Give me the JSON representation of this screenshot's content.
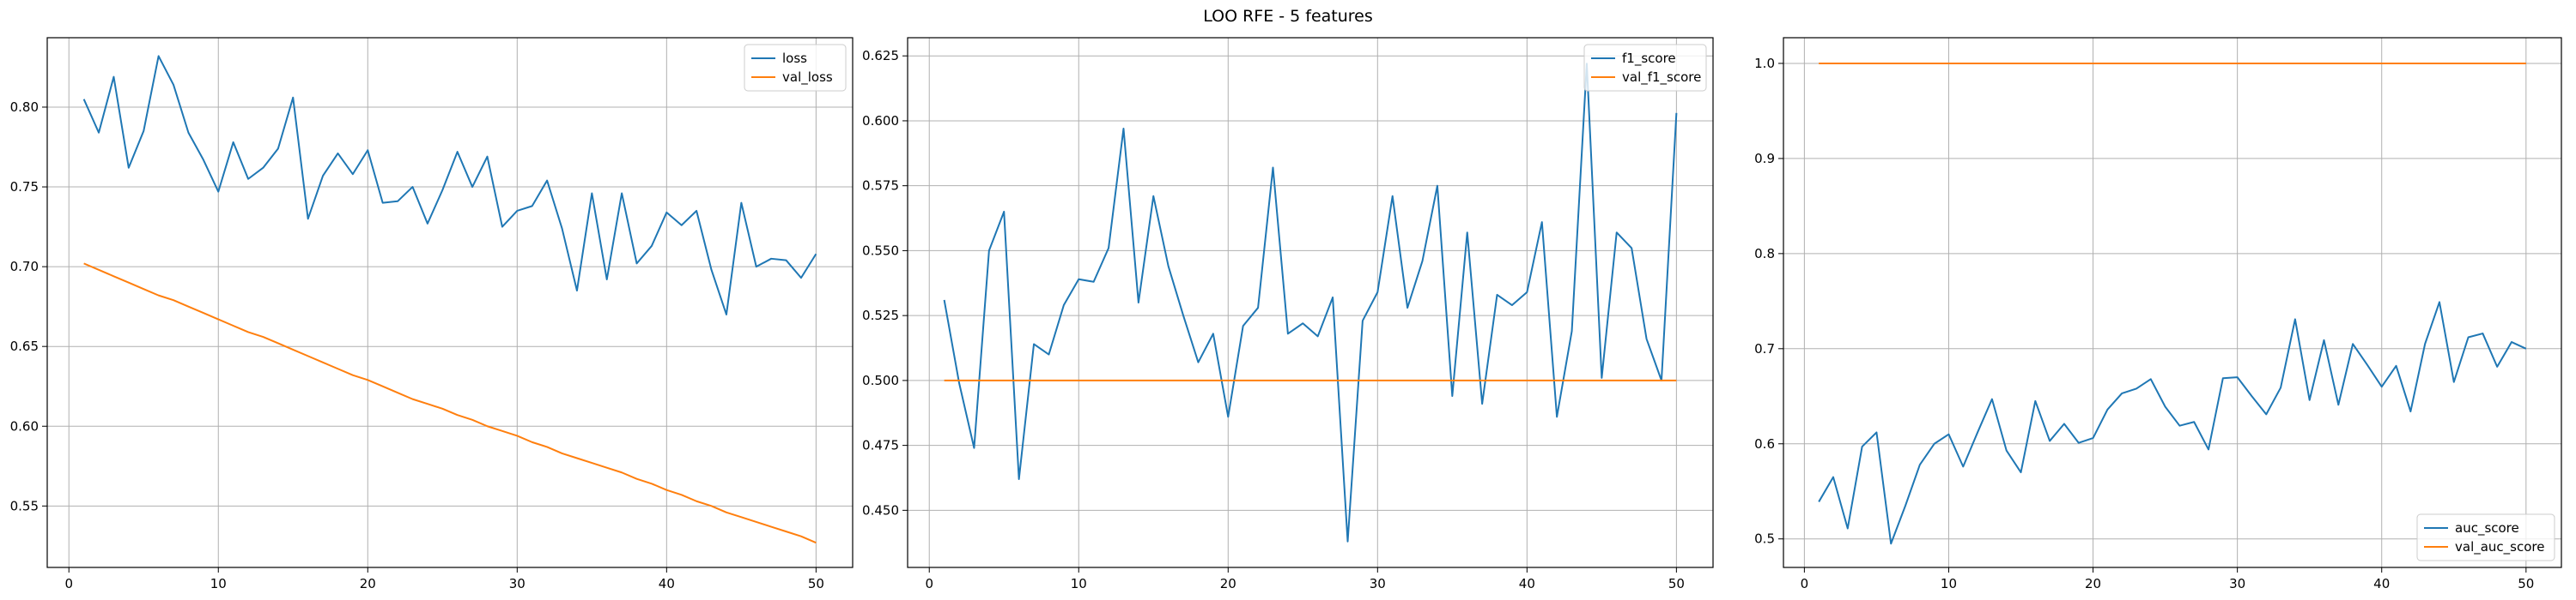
{
  "suptitle": "LOO RFE - 5 features",
  "colors": {
    "train": "#1f77b4",
    "val": "#ff7f0e",
    "grid": "#b0b0b0",
    "axes": "#000000"
  },
  "chart_data": [
    {
      "type": "line",
      "title": "",
      "xlabel": "",
      "ylabel": "",
      "xlim": [
        -1.45,
        52.45
      ],
      "ylim": [
        0.5115,
        0.8435
      ],
      "xticks": [
        0,
        10,
        20,
        30,
        40,
        50
      ],
      "yticks": [
        0.55,
        0.6,
        0.65,
        0.7,
        0.75,
        0.8
      ],
      "ytick_labels": [
        "0.55",
        "0.60",
        "0.65",
        "0.70",
        "0.75",
        "0.80"
      ],
      "grid": true,
      "legend_position": "upper right",
      "x": [
        1,
        2,
        3,
        4,
        5,
        6,
        7,
        8,
        9,
        10,
        11,
        12,
        13,
        14,
        15,
        16,
        17,
        18,
        19,
        20,
        21,
        22,
        23,
        24,
        25,
        26,
        27,
        28,
        29,
        30,
        31,
        32,
        33,
        34,
        35,
        36,
        37,
        38,
        39,
        40,
        41,
        42,
        43,
        44,
        45,
        46,
        47,
        48,
        49,
        50
      ],
      "series": [
        {
          "name": "loss",
          "color": "#1f77b4",
          "values": [
            0.805,
            0.784,
            0.819,
            0.762,
            0.785,
            0.832,
            0.814,
            0.784,
            0.767,
            0.747,
            0.778,
            0.755,
            0.762,
            0.774,
            0.806,
            0.73,
            0.757,
            0.771,
            0.758,
            0.773,
            0.74,
            0.741,
            0.75,
            0.727,
            0.748,
            0.772,
            0.75,
            0.769,
            0.725,
            0.735,
            0.738,
            0.754,
            0.724,
            0.685,
            0.746,
            0.692,
            0.746,
            0.702,
            0.713,
            0.734,
            0.726,
            0.735,
            0.698,
            0.67,
            0.74,
            0.7,
            0.705,
            0.704,
            0.693,
            0.708
          ]
        },
        {
          "name": "val_loss",
          "color": "#ff7f0e",
          "values": [
            0.702,
            0.698,
            0.694,
            0.69,
            0.686,
            0.682,
            0.679,
            0.675,
            0.671,
            0.667,
            0.663,
            0.659,
            0.656,
            0.652,
            0.648,
            0.644,
            0.64,
            0.636,
            0.632,
            0.629,
            0.625,
            0.621,
            0.617,
            0.614,
            0.611,
            0.607,
            0.604,
            0.6,
            0.597,
            0.594,
            0.59,
            0.587,
            0.583,
            0.58,
            0.577,
            0.574,
            0.571,
            0.567,
            0.564,
            0.56,
            0.557,
            0.553,
            0.55,
            0.546,
            0.543,
            0.54,
            0.537,
            0.534,
            0.531,
            0.527
          ]
        }
      ]
    },
    {
      "type": "line",
      "title": "",
      "xlabel": "",
      "ylabel": "",
      "xlim": [
        -1.45,
        52.45
      ],
      "ylim": [
        0.428,
        0.632
      ],
      "xticks": [
        0,
        10,
        20,
        30,
        40,
        50
      ],
      "yticks": [
        0.45,
        0.475,
        0.5,
        0.525,
        0.55,
        0.575,
        0.6,
        0.625
      ],
      "ytick_labels": [
        "0.450",
        "0.475",
        "0.500",
        "0.525",
        "0.550",
        "0.575",
        "0.600",
        "0.625"
      ],
      "grid": true,
      "legend_position": "upper right",
      "x": [
        1,
        2,
        3,
        4,
        5,
        6,
        7,
        8,
        9,
        10,
        11,
        12,
        13,
        14,
        15,
        16,
        17,
        18,
        19,
        20,
        21,
        22,
        23,
        24,
        25,
        26,
        27,
        28,
        29,
        30,
        31,
        32,
        33,
        34,
        35,
        36,
        37,
        38,
        39,
        40,
        41,
        42,
        43,
        44,
        45,
        46,
        47,
        48,
        49,
        50
      ],
      "series": [
        {
          "name": "f1_score",
          "color": "#1f77b4",
          "values": [
            0.531,
            0.499,
            0.474,
            0.55,
            0.565,
            0.462,
            0.514,
            0.51,
            0.529,
            0.539,
            0.538,
            0.551,
            0.597,
            0.53,
            0.571,
            0.544,
            0.525,
            0.507,
            0.518,
            0.486,
            0.521,
            0.528,
            0.582,
            0.518,
            0.522,
            0.517,
            0.532,
            0.438,
            0.523,
            0.534,
            0.571,
            0.528,
            0.546,
            0.575,
            0.494,
            0.557,
            0.491,
            0.533,
            0.529,
            0.534,
            0.561,
            0.486,
            0.519,
            0.622,
            0.501,
            0.557,
            0.551,
            0.516,
            0.5,
            0.603
          ]
        },
        {
          "name": "val_f1_score",
          "color": "#ff7f0e",
          "values": [
            0.5,
            0.5,
            0.5,
            0.5,
            0.5,
            0.5,
            0.5,
            0.5,
            0.5,
            0.5,
            0.5,
            0.5,
            0.5,
            0.5,
            0.5,
            0.5,
            0.5,
            0.5,
            0.5,
            0.5,
            0.5,
            0.5,
            0.5,
            0.5,
            0.5,
            0.5,
            0.5,
            0.5,
            0.5,
            0.5,
            0.5,
            0.5,
            0.5,
            0.5,
            0.5,
            0.5,
            0.5,
            0.5,
            0.5,
            0.5,
            0.5,
            0.5,
            0.5,
            0.5,
            0.5,
            0.5,
            0.5,
            0.5,
            0.5,
            0.5
          ]
        }
      ]
    },
    {
      "type": "line",
      "title": "",
      "xlabel": "",
      "ylabel": "",
      "xlim": [
        -1.45,
        52.45
      ],
      "ylim": [
        0.47,
        1.027
      ],
      "xticks": [
        0,
        10,
        20,
        30,
        40,
        50
      ],
      "yticks": [
        0.5,
        0.6,
        0.7,
        0.8,
        0.9,
        1.0
      ],
      "ytick_labels": [
        "0.5",
        "0.6",
        "0.7",
        "0.8",
        "0.9",
        "1.0"
      ],
      "grid": true,
      "legend_position": "lower right",
      "x": [
        1,
        2,
        3,
        4,
        5,
        6,
        7,
        8,
        9,
        10,
        11,
        12,
        13,
        14,
        15,
        16,
        17,
        18,
        19,
        20,
        21,
        22,
        23,
        24,
        25,
        26,
        27,
        28,
        29,
        30,
        31,
        32,
        33,
        34,
        35,
        36,
        37,
        38,
        39,
        40,
        41,
        42,
        43,
        44,
        45,
        46,
        47,
        48,
        49,
        50
      ],
      "series": [
        {
          "name": "auc_score",
          "color": "#1f77b4",
          "values": [
            0.539,
            0.565,
            0.511,
            0.597,
            0.612,
            0.495,
            0.535,
            0.578,
            0.6,
            0.61,
            0.576,
            0.612,
            0.647,
            0.593,
            0.57,
            0.645,
            0.603,
            0.621,
            0.601,
            0.606,
            0.636,
            0.653,
            0.658,
            0.668,
            0.639,
            0.619,
            0.623,
            0.594,
            0.669,
            0.67,
            0.65,
            0.631,
            0.659,
            0.731,
            0.646,
            0.709,
            0.641,
            0.705,
            0.683,
            0.66,
            0.682,
            0.634,
            0.705,
            0.749,
            0.665,
            0.712,
            0.716,
            0.681,
            0.707,
            0.7
          ]
        },
        {
          "name": "val_auc_score",
          "color": "#ff7f0e",
          "values": [
            1,
            1,
            1,
            1,
            1,
            1,
            1,
            1,
            1,
            1,
            1,
            1,
            1,
            1,
            1,
            1,
            1,
            1,
            1,
            1,
            1,
            1,
            1,
            1,
            1,
            1,
            1,
            1,
            1,
            1,
            1,
            1,
            1,
            1,
            1,
            1,
            1,
            1,
            1,
            1,
            1,
            1,
            1,
            1,
            1,
            1,
            1,
            1,
            1,
            1
          ]
        }
      ]
    }
  ]
}
